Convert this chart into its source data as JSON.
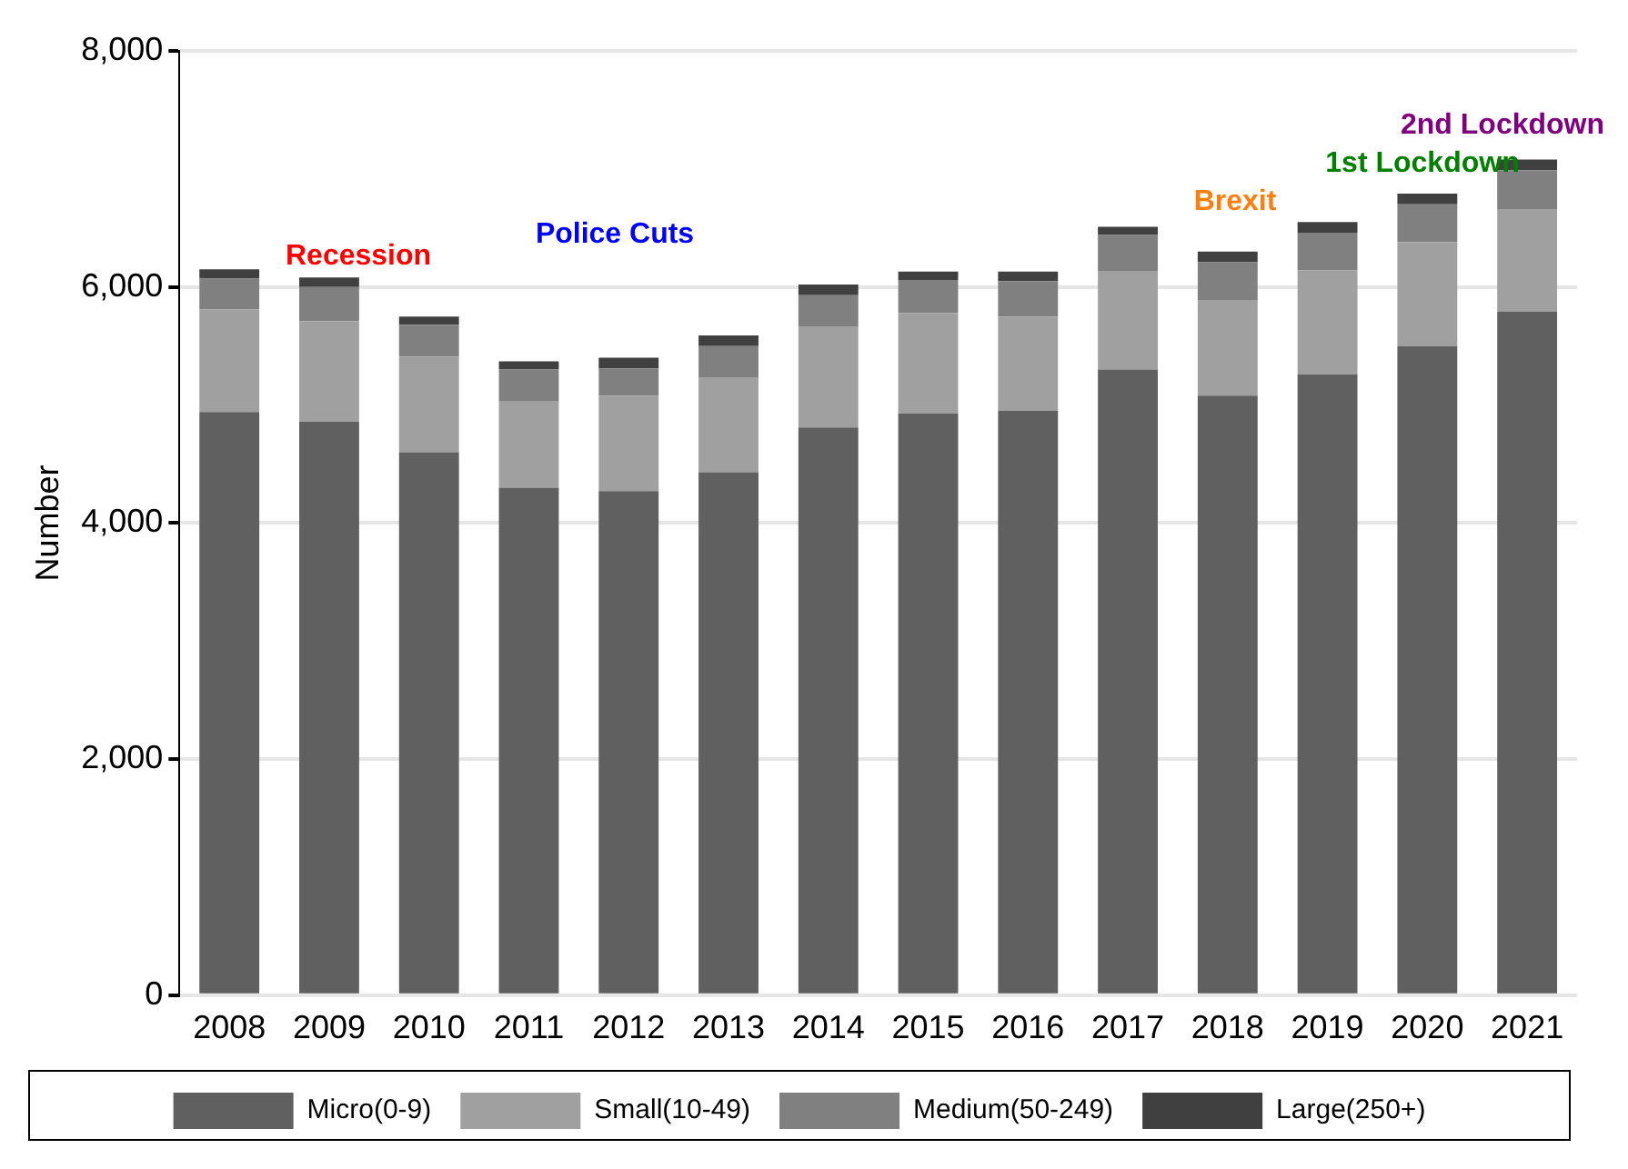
{
  "chart_data": {
    "type": "bar",
    "stacked": true,
    "ylabel": "Number",
    "categories": [
      "2008",
      "2009",
      "2010",
      "2011",
      "2012",
      "2013",
      "2014",
      "2015",
      "2016",
      "2017",
      "2018",
      "2019",
      "2020",
      "2021"
    ],
    "series": [
      {
        "name": "Micro(0-9)",
        "color": "#606060",
        "values": [
          4940,
          4860,
          4600,
          4300,
          4270,
          4430,
          4810,
          4930,
          4950,
          5300,
          5080,
          5260,
          5500,
          5790
        ]
      },
      {
        "name": "Small(10-49)",
        "color": "#a0a0a0",
        "values": [
          870,
          850,
          810,
          730,
          810,
          800,
          850,
          850,
          800,
          830,
          810,
          880,
          880,
          870
        ]
      },
      {
        "name": "Medium(50-249)",
        "color": "#808080",
        "values": [
          260,
          290,
          270,
          270,
          230,
          270,
          270,
          280,
          300,
          310,
          320,
          320,
          320,
          330
        ]
      },
      {
        "name": "Large(250+)",
        "color": "#404040",
        "values": [
          80,
          80,
          70,
          70,
          90,
          90,
          90,
          70,
          80,
          70,
          90,
          90,
          90,
          90
        ]
      }
    ],
    "ylim": [
      0,
      8000
    ],
    "yticks": [
      {
        "value": 0,
        "label": "0"
      },
      {
        "value": 2000,
        "label": "2,000"
      },
      {
        "value": 4000,
        "label": "4,000"
      },
      {
        "value": 6000,
        "label": "6,000"
      },
      {
        "value": 8000,
        "label": "8,000"
      }
    ],
    "grid": "y",
    "legend": "bottom",
    "annotations": [
      "Recession",
      "Police Cuts",
      "Brexit",
      "1st Lockdown",
      "2nd Lockdown"
    ]
  }
}
